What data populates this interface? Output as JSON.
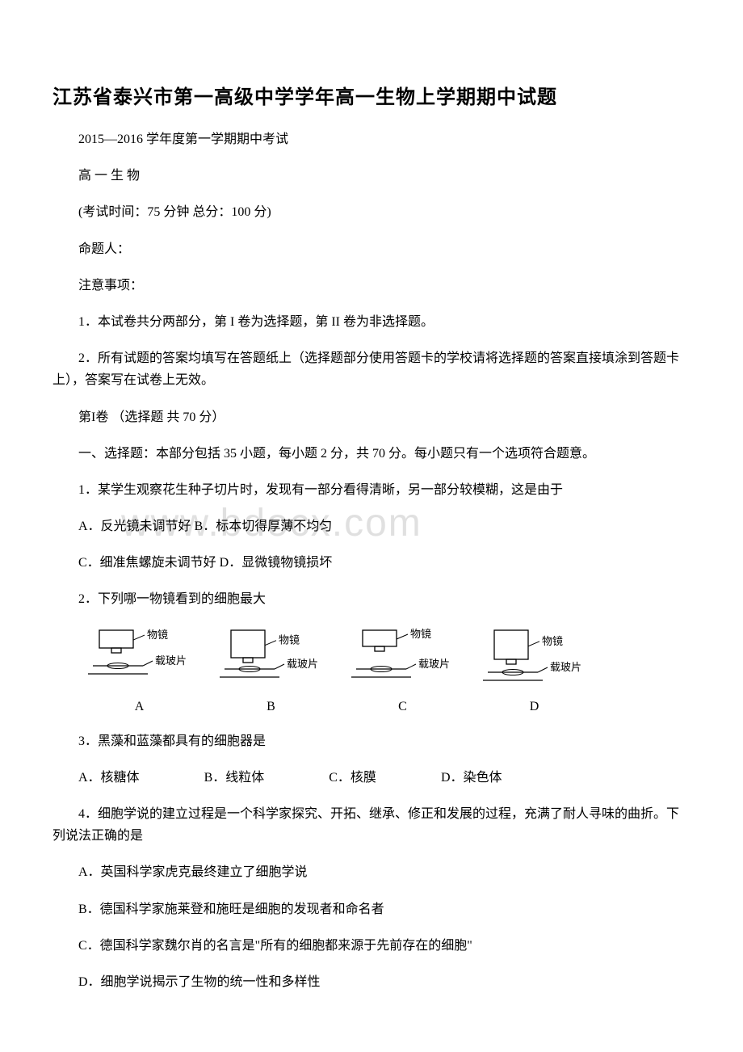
{
  "title": "江苏省泰兴市第一高级中学学年高一生物上学期期中试题",
  "header": {
    "semester": "2015—2016 学年度第一学期期中考试",
    "subject": "高 一 生 物",
    "exam_info": "(考试时间：75 分钟 总分：100 分)",
    "author": "命题人：",
    "notice_title": "注意事项：",
    "notice1": "1．本试卷共分两部分，第 I 卷为选择题，第 II 卷为非选择题。",
    "notice2": "2．所有试题的答案均填写在答题纸上（选择题部分使用答题卡的学校请将选择题的答案直接填涂到答题卡上），答案写在试卷上无效。",
    "section1": "第I卷 （选择题 共 70 分）",
    "instructions": "一、选择题：本部分包括 35 小题，每小题 2 分，共 70 分。每小题只有一个选项符合题意。"
  },
  "q1": {
    "stem": "1．某学生观察花生种子切片时，发现有一部分看得清晰，另一部分较模糊，这是由于",
    "optAB": "A．反光镜未调节好 B．标本切得厚薄不均匀",
    "optCD": "C．细准焦螺旋未调节好 D．显微镜物镜损坏"
  },
  "q2": {
    "stem": "2．下列哪一物镜看到的细胞最大",
    "diagrams": [
      {
        "letter": "A",
        "lens_h": 22,
        "gap": 16,
        "label_lens": "物镜",
        "label_slide": "载玻片"
      },
      {
        "letter": "B",
        "lens_h": 34,
        "gap": 8,
        "label_lens": "物镜",
        "label_slide": "载玻片"
      },
      {
        "letter": "C",
        "lens_h": 20,
        "gap": 22,
        "label_lens": "物镜",
        "label_slide": "载玻片"
      },
      {
        "letter": "D",
        "lens_h": 36,
        "gap": 10,
        "label_lens": "物镜",
        "label_slide": "载玻片"
      }
    ]
  },
  "q3": {
    "stem": "3．黑藻和蓝藻都具有的细胞器是",
    "optA": "A．核糖体",
    "optB": "B．线粒体",
    "optC": "C．核膜",
    "optD": "D．染色体"
  },
  "q4": {
    "stem": "4．细胞学说的建立过程是一个科学家探究、开拓、继承、修正和发展的过程，充满了耐人寻味的曲折。下列说法正确的是",
    "optA": "A．英国科学家虎克最终建立了细胞学说",
    "optB": "B．德国科学家施莱登和施旺是细胞的发现者和命名者",
    "optC": "C．德国科学家魏尔肖的名言是\"所有的细胞都来源于先前存在的细胞\"",
    "optD": "D．细胞学说揭示了生物的统一性和多样性"
  },
  "watermark": "www.bdocx.com",
  "style": {
    "title_color": "#000000",
    "text_color": "#000000",
    "watermark_color": "rgba(0,0,0,0.12)",
    "background": "#ffffff",
    "stroke": "#000000",
    "label_fontsize": 13
  }
}
